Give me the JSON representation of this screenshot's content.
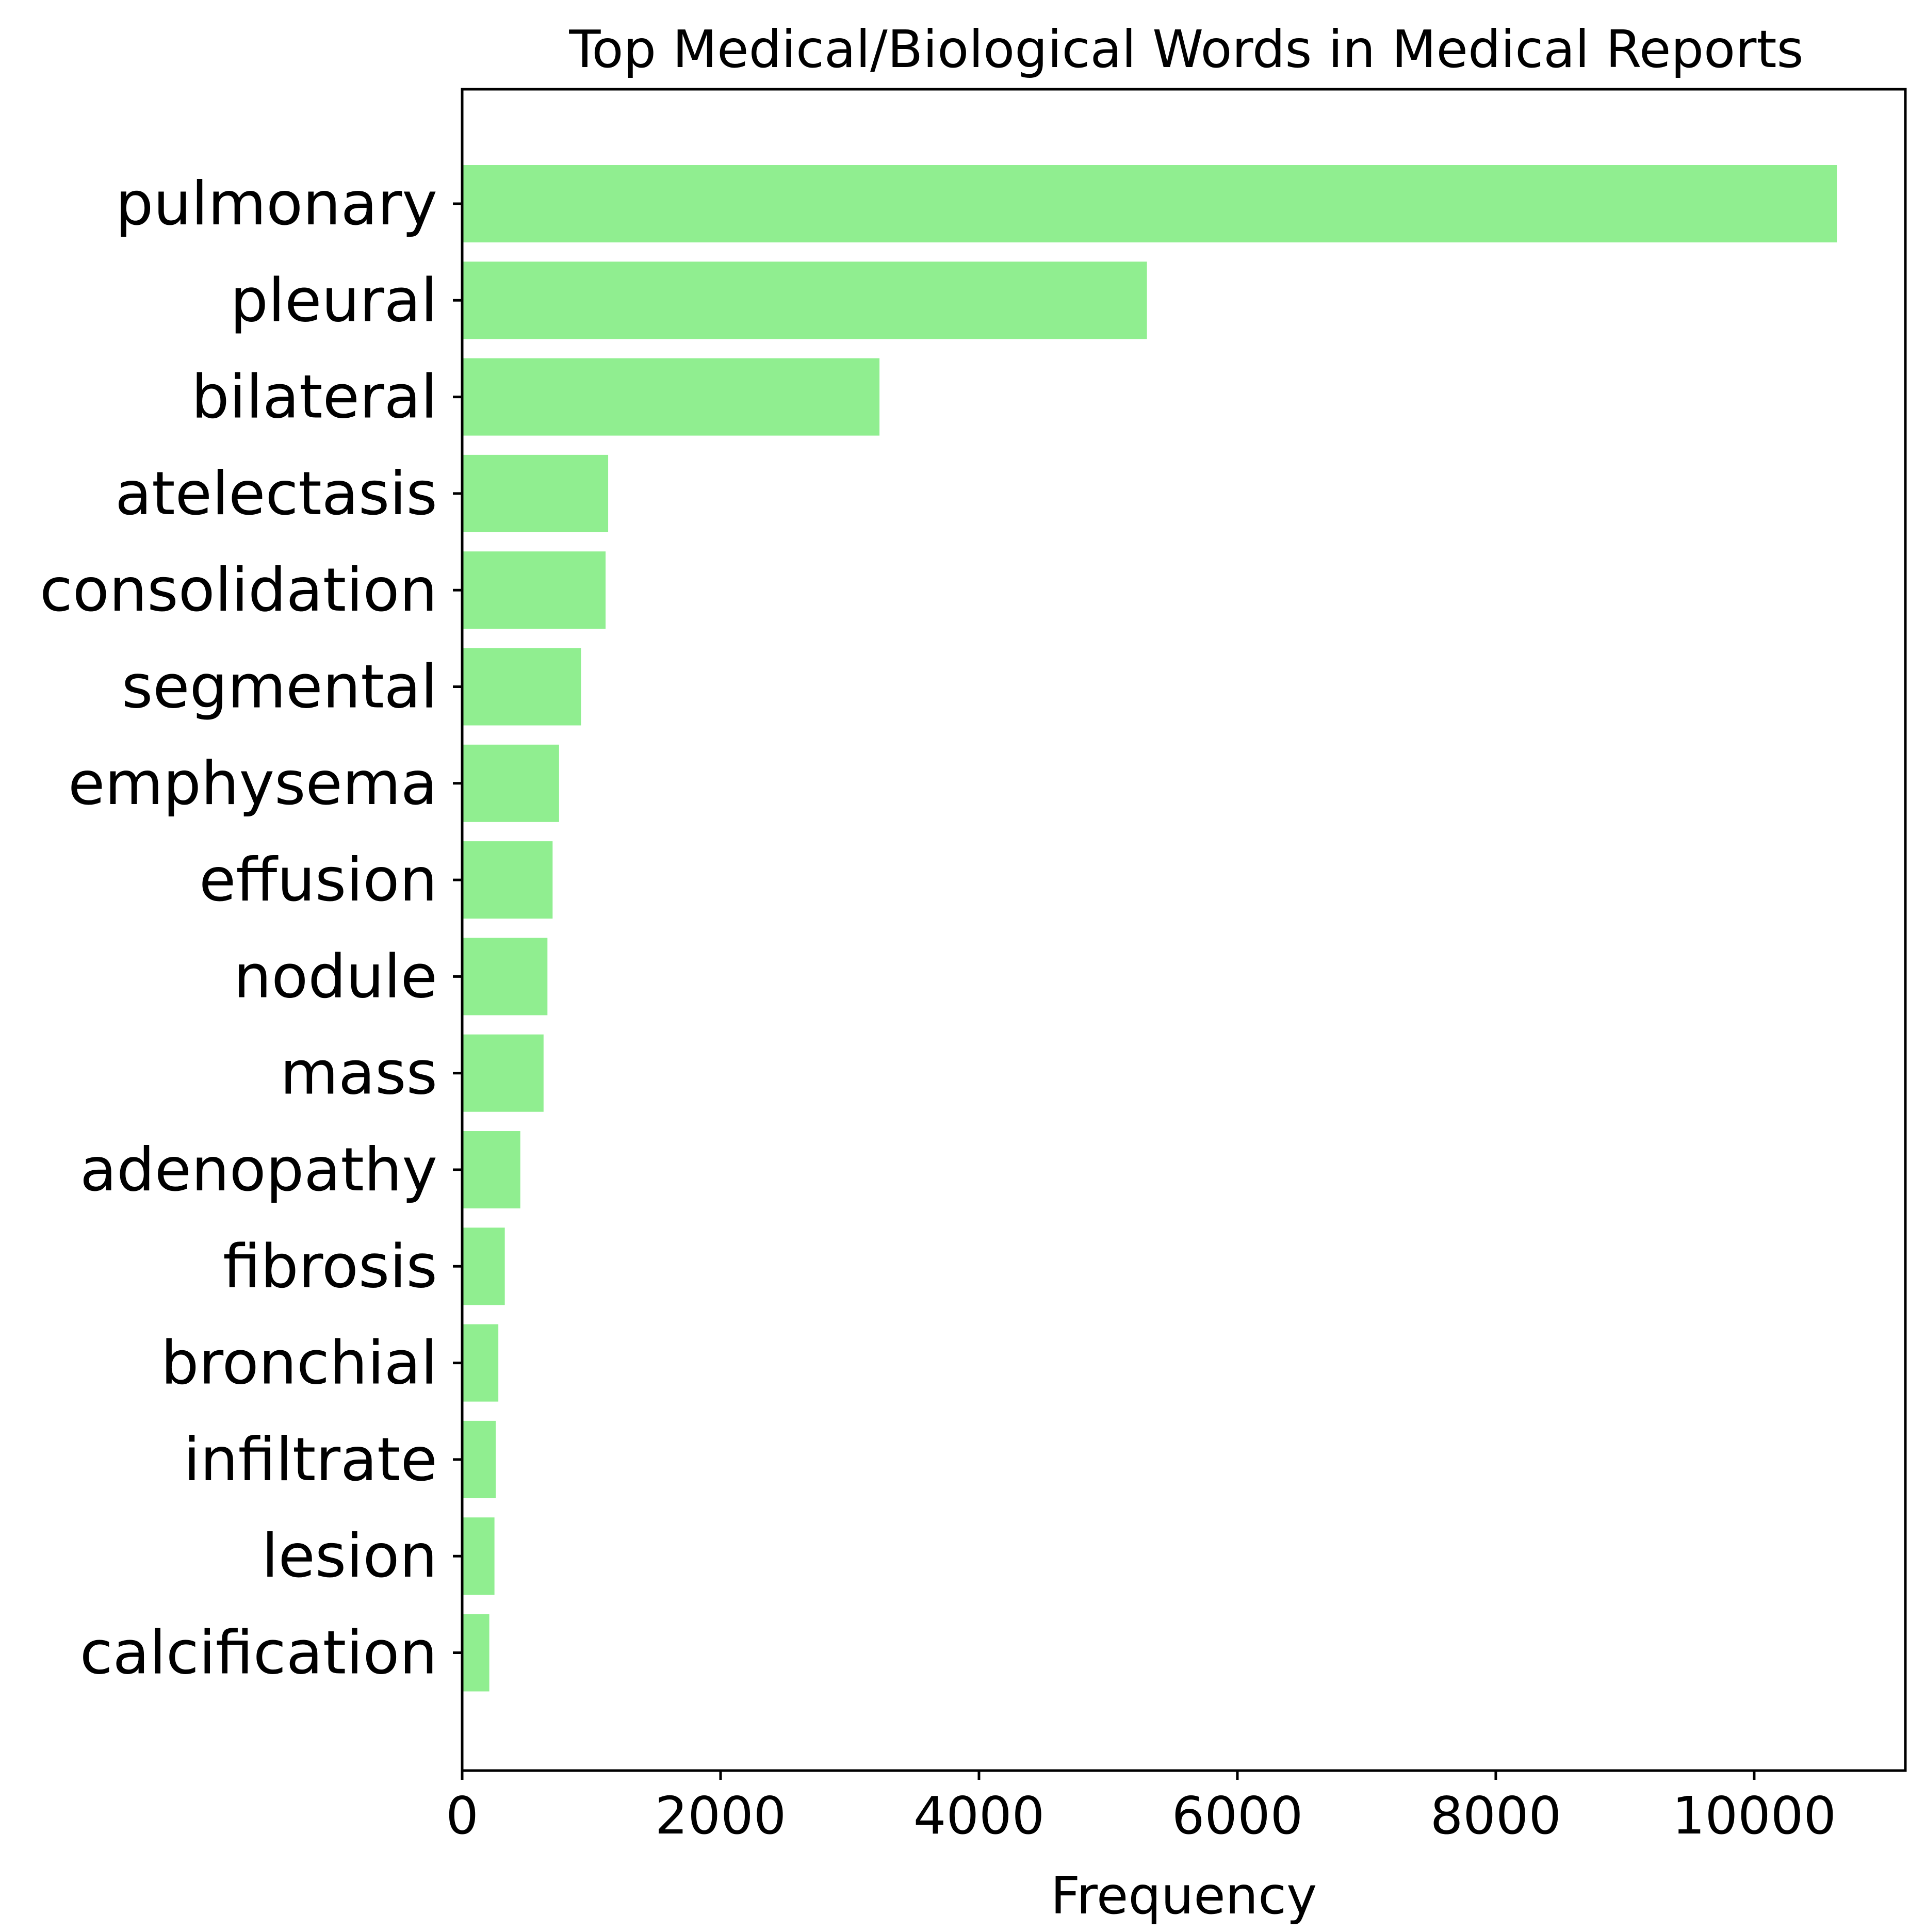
{
  "chart_data": {
    "type": "bar",
    "orientation": "horizontal",
    "title": "Top Medical/Biological Words in Medical Reports",
    "xlabel": "Frequency",
    "ylabel": "",
    "categories": [
      "pulmonary",
      "pleural",
      "bilateral",
      "atelectasis",
      "consolidation",
      "segmental",
      "emphysema",
      "effusion",
      "nodule",
      "mass",
      "adenopathy",
      "fibrosis",
      "bronchial",
      "infiltrate",
      "lesion",
      "calcification"
    ],
    "values": [
      10640,
      5300,
      3230,
      1130,
      1110,
      920,
      750,
      700,
      660,
      630,
      450,
      330,
      280,
      260,
      250,
      210
    ],
    "xlim": [
      0,
      11170
    ],
    "xticks": [
      0,
      2000,
      4000,
      6000,
      8000,
      10000
    ],
    "xtick_labels": [
      "0",
      "2000",
      "4000",
      "6000",
      "8000",
      "10000"
    ],
    "bar_color": "#90ee90",
    "grid": false,
    "legend": "none"
  }
}
